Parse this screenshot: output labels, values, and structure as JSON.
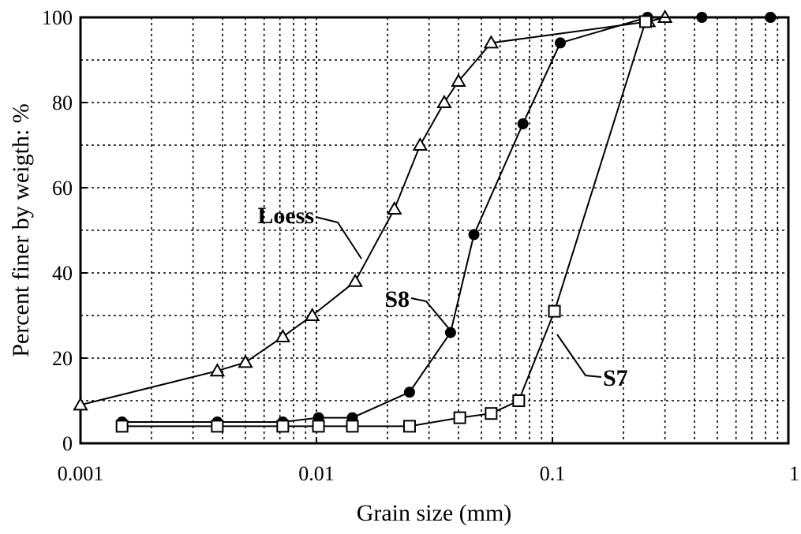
{
  "chart_data": {
    "type": "line",
    "xlabel": "Grain size (mm)",
    "ylabel": "Percent finer by weigth: %",
    "x_scale": "log",
    "xlim": [
      0.001,
      1
    ],
    "ylim": [
      0,
      100
    ],
    "grid": true,
    "x_ticks": [
      "0.001",
      "0.01",
      "0.1",
      "1"
    ],
    "y_ticks": [
      "0",
      "20",
      "40",
      "60",
      "80",
      "100"
    ],
    "series": [
      {
        "name": "Loess",
        "marker": "triangle-open",
        "x": [
          0.001,
          0.0038,
          0.005,
          0.0072,
          0.0096,
          0.0146,
          0.0214,
          0.0275,
          0.0348,
          0.04,
          0.055,
          0.255,
          0.3
        ],
        "y": [
          9,
          17,
          19,
          25,
          30,
          38,
          55,
          70,
          80,
          85,
          94,
          99,
          100
        ]
      },
      {
        "name": "S8",
        "marker": "circle-filled",
        "x": [
          0.0015,
          0.0038,
          0.0072,
          0.0102,
          0.0142,
          0.0248,
          0.037,
          0.0465,
          0.075,
          0.108,
          0.253,
          0.43,
          0.84
        ],
        "y": [
          5,
          5,
          5,
          6,
          6,
          12,
          26,
          49,
          75,
          94,
          100,
          100,
          100
        ]
      },
      {
        "name": "S7",
        "marker": "square-open",
        "x": [
          0.0015,
          0.0038,
          0.0072,
          0.0102,
          0.0142,
          0.0248,
          0.0405,
          0.055,
          0.072,
          0.102,
          0.248
        ],
        "y": [
          4,
          4,
          4,
          4,
          4,
          4,
          6,
          7,
          10,
          31,
          99
        ]
      }
    ],
    "annotations": [
      {
        "text": "Loess",
        "series": "Loess"
      },
      {
        "text": "S8",
        "series": "S8"
      },
      {
        "text": "S7",
        "series": "S7"
      }
    ]
  }
}
